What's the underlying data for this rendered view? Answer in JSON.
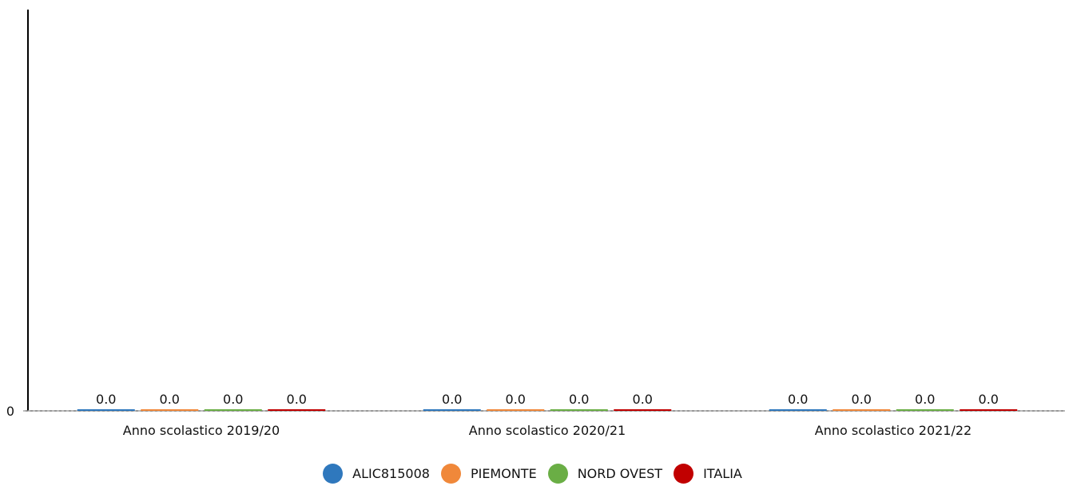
{
  "chart_data": {
    "type": "bar",
    "categories": [
      "Anno scolastico 2019/20",
      "Anno scolastico 2020/21",
      "Anno scolastico 2021/22"
    ],
    "series": [
      {
        "name": "ALIC815008",
        "color": "#2f78bd",
        "values": [
          0.0,
          0.0,
          0.0
        ],
        "labels": [
          "0.0",
          "0.0",
          "0.0"
        ]
      },
      {
        "name": "PIEMONTE",
        "color": "#f0883a",
        "values": [
          0.0,
          0.0,
          0.0
        ],
        "labels": [
          "0.0",
          "0.0",
          "0.0"
        ]
      },
      {
        "name": "NORD OVEST",
        "color": "#6aae45",
        "values": [
          0.0,
          0.0,
          0.0
        ],
        "labels": [
          "0.0",
          "0.0",
          "0.0"
        ]
      },
      {
        "name": "ITALIA",
        "color": "#c10000",
        "values": [
          0.0,
          0.0,
          0.0
        ],
        "labels": [
          "0.0",
          "0.0",
          "0.0"
        ]
      }
    ],
    "y_ticks": [
      "0"
    ],
    "ylim": [
      0,
      1
    ],
    "grid": false,
    "legend_position": "bottom-center"
  }
}
